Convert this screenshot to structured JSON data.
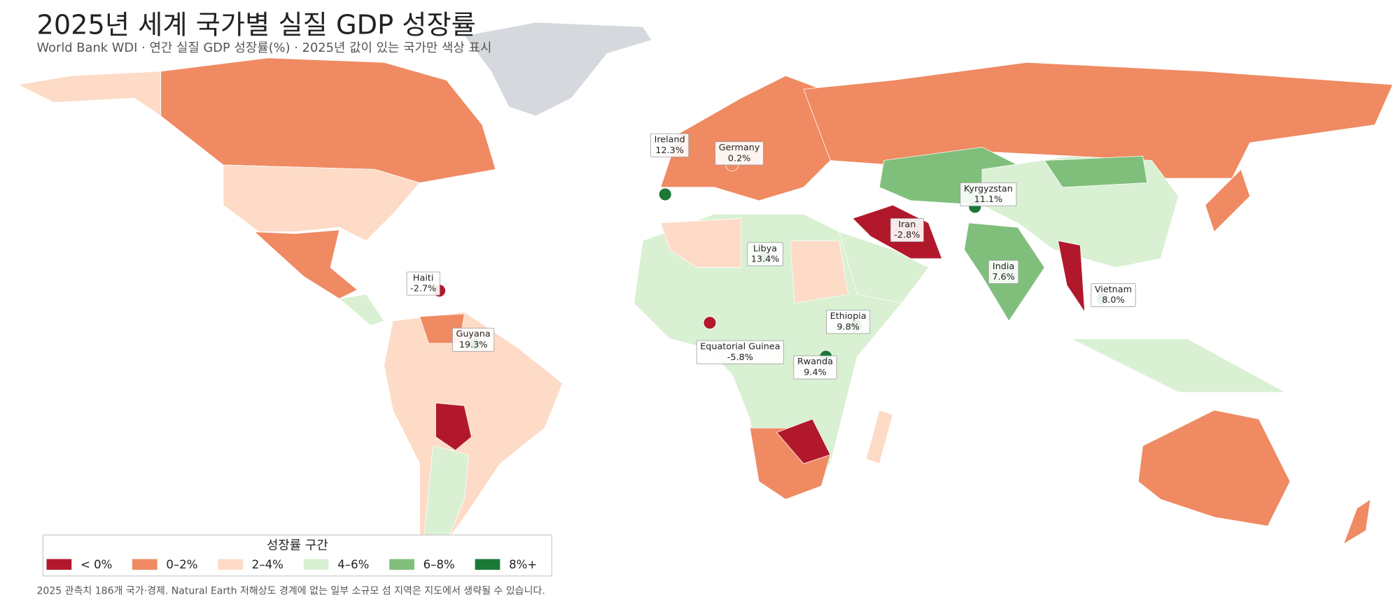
{
  "title": "2025년 세계 국가별 실질 GDP 성장률",
  "subtitle": "World Bank WDI · 연간 실질 GDP 성장률(%) · 2025년 값이 있는 국가만 색상 표시",
  "annotations": [
    {
      "name": "Ireland",
      "value": 12.3,
      "value_label": "12.3%"
    },
    {
      "name": "Germany",
      "value": 0.2,
      "value_label": "0.2%"
    },
    {
      "name": "Kyrgyzstan",
      "value": 11.1,
      "value_label": "11.1%"
    },
    {
      "name": "Iran",
      "value": -2.8,
      "value_label": "-2.8%"
    },
    {
      "name": "Libya",
      "value": 13.4,
      "value_label": "13.4%"
    },
    {
      "name": "Haiti",
      "value": -2.7,
      "value_label": "-2.7%"
    },
    {
      "name": "India",
      "value": 7.6,
      "value_label": "7.6%"
    },
    {
      "name": "Vietnam",
      "value": 8.0,
      "value_label": "8.0%"
    },
    {
      "name": "Ethiopia",
      "value": 9.8,
      "value_label": "9.8%"
    },
    {
      "name": "Guyana",
      "value": 19.3,
      "value_label": "19.3%"
    },
    {
      "name": "Equatorial Guinea",
      "value": -5.8,
      "value_label": "-5.8%"
    },
    {
      "name": "Rwanda",
      "value": 9.4,
      "value_label": "9.4%"
    }
  ],
  "legend": {
    "title": "성장률 구간",
    "thresholds": [
      0,
      2,
      4,
      6,
      8
    ],
    "bins": [
      {
        "label": "< 0%",
        "color": "#b2182b"
      },
      {
        "label": "0–2%",
        "color": "#ef8a62"
      },
      {
        "label": "2–4%",
        "color": "#fddbc7"
      },
      {
        "label": "4–6%",
        "color": "#d9f0d3"
      },
      {
        "label": "6–8%",
        "color": "#7fbf7b"
      },
      {
        "label": "8%+",
        "color": "#1b7837"
      }
    ]
  },
  "footnote": "2025 관측치 186개 국가·경제. Natural Earth 저해상도 경계에 없는 일부 소규모 섬 지역은 지도에서 생략될 수 있습니다."
}
